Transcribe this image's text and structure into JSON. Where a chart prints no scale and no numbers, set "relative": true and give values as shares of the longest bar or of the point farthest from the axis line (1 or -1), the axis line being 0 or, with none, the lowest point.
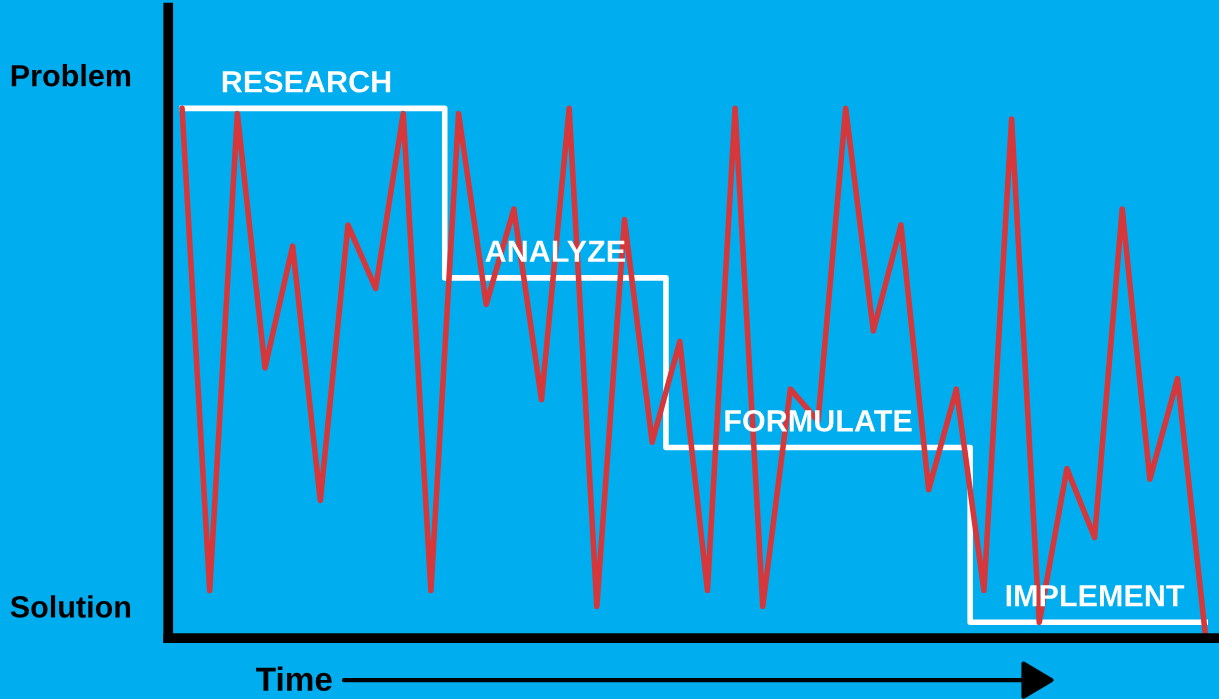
{
  "chart_data": {
    "type": "line",
    "relative": true,
    "xlabel": "Time",
    "marker": "none",
    "line_style": "solid",
    "categories": [
      null,
      null,
      null,
      null,
      null,
      null,
      null,
      null,
      null,
      null,
      null,
      null,
      null,
      null,
      null,
      null,
      null,
      null,
      null,
      null,
      null,
      null,
      null,
      null,
      null,
      null,
      null,
      null,
      null,
      null,
      null,
      null,
      null,
      null,
      null,
      null,
      null,
      null
    ],
    "series": [
      {
        "type": "step",
        "color": "#ffffff",
        "values": [
          1.0,
          1.0,
          1.0,
          1.0,
          1.0,
          1.0,
          1.0,
          1.0,
          1.0,
          1.0,
          0.68,
          0.68,
          0.68,
          0.68,
          0.68,
          0.68,
          0.68,
          0.68,
          0.36,
          0.36,
          0.36,
          0.36,
          0.36,
          0.36,
          0.36,
          0.36,
          0.36,
          0.36,
          0.36,
          0.03,
          0.03,
          0.03,
          0.03,
          0.03,
          0.03,
          0.03,
          0.03,
          0.03
        ]
      },
      {
        "color": "#d6373a",
        "values": [
          1.0,
          0.09,
          0.99,
          0.51,
          0.74,
          0.26,
          0.78,
          0.66,
          0.99,
          0.09,
          0.99,
          0.63,
          0.81,
          0.45,
          1.0,
          0.06,
          0.79,
          0.37,
          0.56,
          0.09,
          1.0,
          0.06,
          0.47,
          0.41,
          1.0,
          0.58,
          0.78,
          0.28,
          0.47,
          0.09,
          0.98,
          0.03,
          0.32,
          0.19,
          0.81,
          0.3,
          0.49,
          0.01
        ]
      }
    ],
    "annotations": [
      "Problem",
      "Solution",
      {
        "text": "RESEARCH",
        "y": 1.0
      },
      {
        "text": "ANALYZE",
        "y": 0.68
      },
      {
        "text": "FORMULATE",
        "y": 0.36
      },
      {
        "text": "IMPLEMENT",
        "y": 0.03
      }
    ]
  }
}
